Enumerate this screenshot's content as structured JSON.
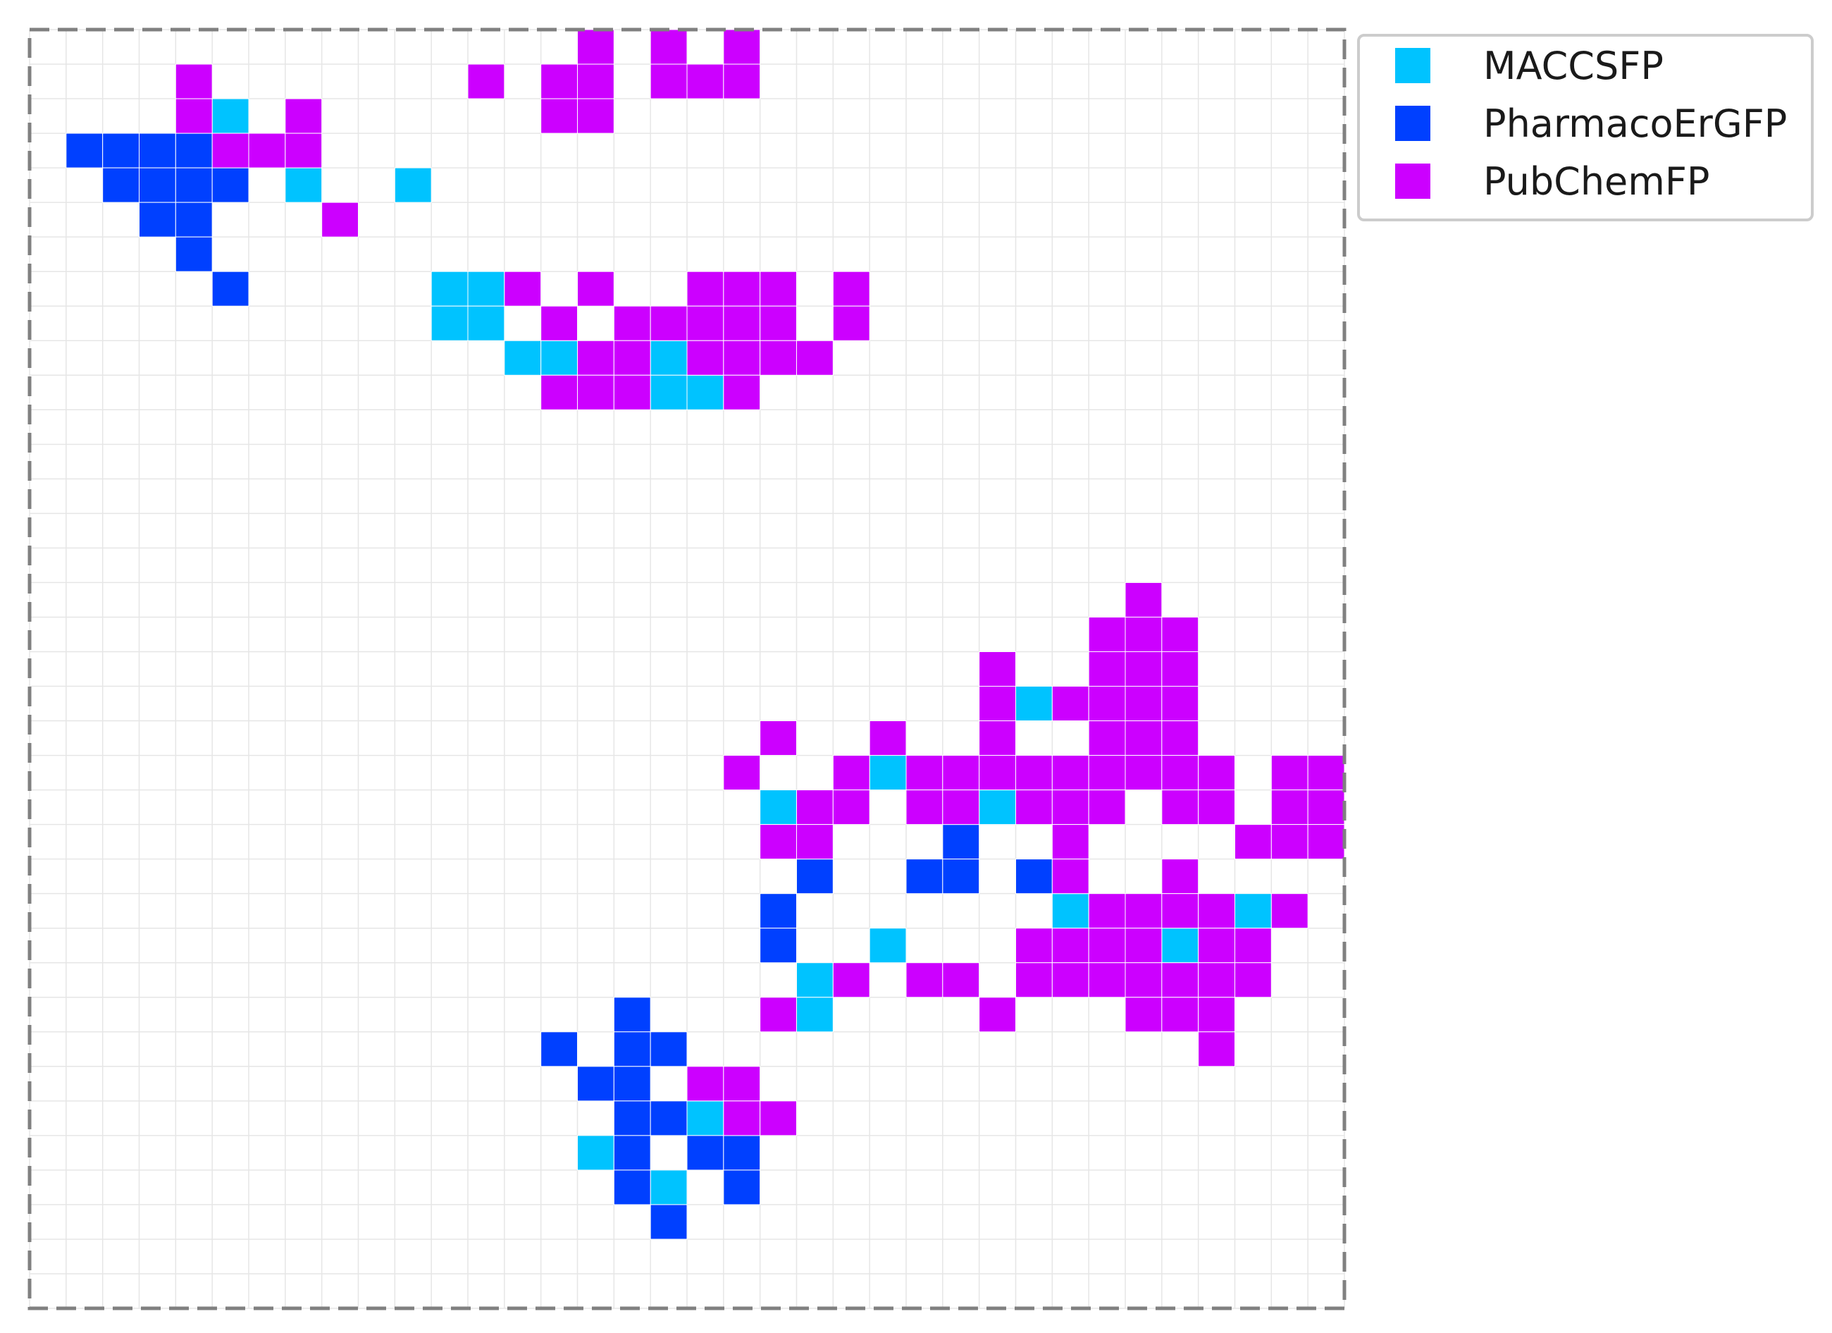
{
  "chart_data": {
    "type": "heatmap",
    "title": "",
    "xlabel": "",
    "ylabel": "",
    "grid": true,
    "grid_size": [
      36,
      37
    ],
    "xlim": [
      0,
      36
    ],
    "ylim": [
      0,
      37
    ],
    "frame_style": "dashed",
    "legend_position": "outside-top-right",
    "series": [
      {
        "name": "MACCSFP",
        "color": "#00c3ff",
        "cells": [
          [
            5,
            2
          ],
          [
            7,
            4
          ],
          [
            10,
            4
          ],
          [
            11,
            7
          ],
          [
            12,
            7
          ],
          [
            11,
            8
          ],
          [
            12,
            8
          ],
          [
            13,
            9
          ],
          [
            14,
            9
          ],
          [
            17,
            9
          ],
          [
            17,
            10
          ],
          [
            18,
            10
          ],
          [
            27,
            19
          ],
          [
            23,
            21
          ],
          [
            20,
            22
          ],
          [
            26,
            22
          ],
          [
            27,
            24
          ],
          [
            28,
            25
          ],
          [
            33,
            25
          ],
          [
            23,
            26
          ],
          [
            31,
            26
          ],
          [
            21,
            27
          ],
          [
            21,
            28
          ],
          [
            18,
            31
          ],
          [
            15,
            32
          ],
          [
            17,
            33
          ]
        ]
      },
      {
        "name": "PharmacoErGFP",
        "color": "#0040ff",
        "cells": [
          [
            1,
            3
          ],
          [
            2,
            3
          ],
          [
            3,
            3
          ],
          [
            4,
            3
          ],
          [
            2,
            4
          ],
          [
            3,
            4
          ],
          [
            4,
            4
          ],
          [
            5,
            4
          ],
          [
            3,
            5
          ],
          [
            4,
            5
          ],
          [
            4,
            6
          ],
          [
            5,
            7
          ],
          [
            25,
            23
          ],
          [
            21,
            24
          ],
          [
            24,
            24
          ],
          [
            25,
            24
          ],
          [
            27,
            24
          ],
          [
            20,
            25
          ],
          [
            20,
            26
          ],
          [
            16,
            28
          ],
          [
            14,
            29
          ],
          [
            16,
            29
          ],
          [
            17,
            29
          ],
          [
            15,
            30
          ],
          [
            16,
            30
          ],
          [
            16,
            31
          ],
          [
            17,
            31
          ],
          [
            16,
            32
          ],
          [
            18,
            32
          ],
          [
            19,
            32
          ],
          [
            16,
            33
          ],
          [
            19,
            33
          ],
          [
            17,
            34
          ]
        ]
      },
      {
        "name": "PubChemFP",
        "color": "#cc00ff",
        "cells": [
          [
            15,
            0
          ],
          [
            17,
            0
          ],
          [
            19,
            0
          ],
          [
            4,
            1
          ],
          [
            12,
            1
          ],
          [
            14,
            1
          ],
          [
            15,
            1
          ],
          [
            17,
            1
          ],
          [
            18,
            1
          ],
          [
            19,
            1
          ],
          [
            4,
            2
          ],
          [
            7,
            2
          ],
          [
            14,
            2
          ],
          [
            15,
            2
          ],
          [
            5,
            3
          ],
          [
            6,
            3
          ],
          [
            7,
            3
          ],
          [
            8,
            5
          ],
          [
            13,
            7
          ],
          [
            15,
            7
          ],
          [
            18,
            7
          ],
          [
            19,
            7
          ],
          [
            20,
            7
          ],
          [
            22,
            7
          ],
          [
            14,
            8
          ],
          [
            16,
            8
          ],
          [
            17,
            8
          ],
          [
            18,
            8
          ],
          [
            19,
            8
          ],
          [
            20,
            8
          ],
          [
            22,
            8
          ],
          [
            15,
            9
          ],
          [
            16,
            9
          ],
          [
            18,
            9
          ],
          [
            19,
            9
          ],
          [
            20,
            9
          ],
          [
            21,
            9
          ],
          [
            14,
            10
          ],
          [
            15,
            10
          ],
          [
            16,
            10
          ],
          [
            19,
            10
          ],
          [
            30,
            16
          ],
          [
            29,
            17
          ],
          [
            30,
            17
          ],
          [
            31,
            17
          ],
          [
            26,
            18
          ],
          [
            29,
            18
          ],
          [
            30,
            18
          ],
          [
            31,
            18
          ],
          [
            26,
            19
          ],
          [
            28,
            19
          ],
          [
            29,
            19
          ],
          [
            30,
            19
          ],
          [
            31,
            19
          ],
          [
            20,
            20
          ],
          [
            23,
            20
          ],
          [
            26,
            20
          ],
          [
            29,
            20
          ],
          [
            30,
            20
          ],
          [
            31,
            20
          ],
          [
            19,
            21
          ],
          [
            22,
            21
          ],
          [
            24,
            21
          ],
          [
            25,
            21
          ],
          [
            26,
            21
          ],
          [
            27,
            21
          ],
          [
            28,
            21
          ],
          [
            29,
            21
          ],
          [
            30,
            21
          ],
          [
            31,
            21
          ],
          [
            32,
            21
          ],
          [
            34,
            21
          ],
          [
            35,
            21
          ],
          [
            21,
            22
          ],
          [
            22,
            22
          ],
          [
            24,
            22
          ],
          [
            25,
            22
          ],
          [
            27,
            22
          ],
          [
            28,
            22
          ],
          [
            29,
            22
          ],
          [
            31,
            22
          ],
          [
            32,
            22
          ],
          [
            34,
            22
          ],
          [
            35,
            22
          ],
          [
            20,
            23
          ],
          [
            21,
            23
          ],
          [
            28,
            23
          ],
          [
            33,
            23
          ],
          [
            34,
            23
          ],
          [
            35,
            23
          ],
          [
            28,
            24
          ],
          [
            31,
            24
          ],
          [
            29,
            25
          ],
          [
            30,
            25
          ],
          [
            31,
            25
          ],
          [
            32,
            25
          ],
          [
            34,
            25
          ],
          [
            27,
            26
          ],
          [
            28,
            26
          ],
          [
            29,
            26
          ],
          [
            30,
            26
          ],
          [
            32,
            26
          ],
          [
            33,
            26
          ],
          [
            22,
            27
          ],
          [
            24,
            27
          ],
          [
            25,
            27
          ],
          [
            27,
            27
          ],
          [
            28,
            27
          ],
          [
            29,
            27
          ],
          [
            30,
            27
          ],
          [
            31,
            27
          ],
          [
            32,
            27
          ],
          [
            33,
            27
          ],
          [
            20,
            28
          ],
          [
            26,
            28
          ],
          [
            30,
            28
          ],
          [
            31,
            28
          ],
          [
            32,
            28
          ],
          [
            32,
            29
          ],
          [
            18,
            30
          ],
          [
            19,
            30
          ],
          [
            19,
            31
          ],
          [
            20,
            31
          ]
        ]
      }
    ]
  }
}
